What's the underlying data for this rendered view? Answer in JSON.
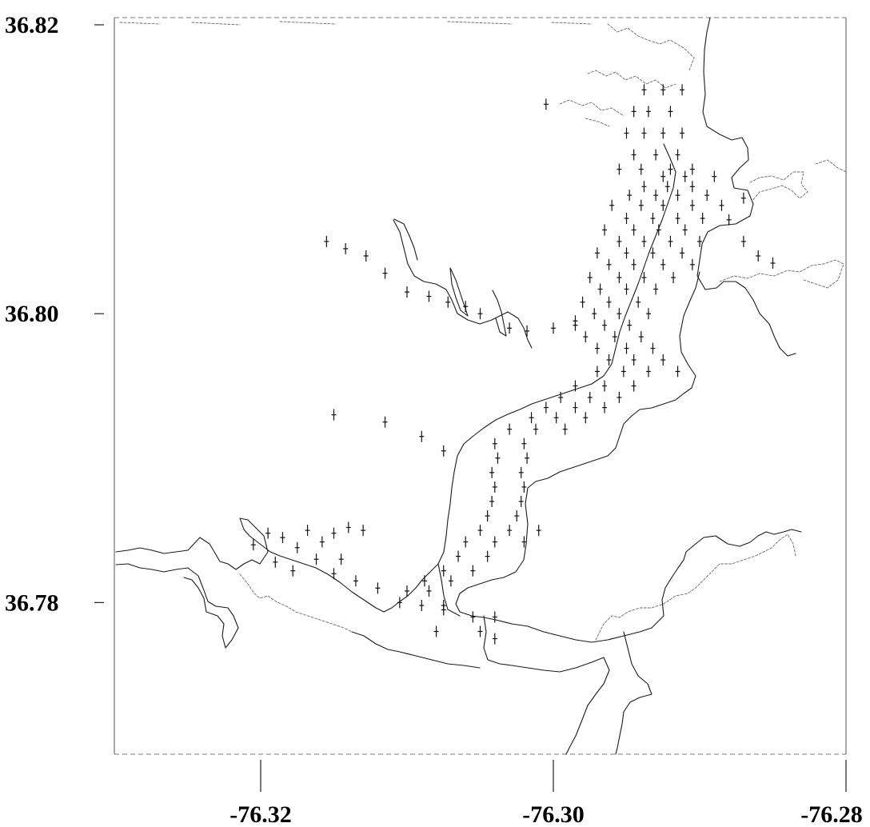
{
  "chart_data": {
    "type": "scatter",
    "title": "",
    "xlabel": "",
    "ylabel": "",
    "xlim": [
      -76.33,
      -76.28
    ],
    "ylim": [
      36.7695,
      36.8205
    ],
    "x_ticks": [
      {
        "value": -76.32,
        "label": "-76.32"
      },
      {
        "value": -76.3,
        "label": "-76.30"
      },
      {
        "value": -76.28,
        "label": "-76.28"
      }
    ],
    "y_ticks": [
      {
        "value": 36.82,
        "label": "36.82"
      },
      {
        "value": 36.8,
        "label": "36.80"
      },
      {
        "value": 36.78,
        "label": "36.78"
      }
    ],
    "grid": false,
    "legend": "none",
    "marker": "+",
    "marker_color": "#111111",
    "coastline_color": "#1a1a1a",
    "series": [
      {
        "points": [
          [
            -76.2938,
            36.8155
          ],
          [
            -76.2925,
            36.8155
          ],
          [
            -76.2912,
            36.8155
          ],
          [
            -76.2945,
            36.814
          ],
          [
            -76.2935,
            36.814
          ],
          [
            -76.292,
            36.814
          ],
          [
            -76.295,
            36.8125
          ],
          [
            -76.2938,
            36.8125
          ],
          [
            -76.2925,
            36.8125
          ],
          [
            -76.2912,
            36.8125
          ],
          [
            -76.2945,
            36.811
          ],
          [
            -76.293,
            36.811
          ],
          [
            -76.2915,
            36.811
          ],
          [
            -76.2955,
            36.81
          ],
          [
            -76.294,
            36.81
          ],
          [
            -76.292,
            36.81
          ],
          [
            -76.2905,
            36.81
          ],
          [
            -76.2925,
            36.8095
          ],
          [
            -76.291,
            36.8095
          ],
          [
            -76.289,
            36.8095
          ],
          [
            -76.2938,
            36.8088
          ],
          [
            -76.2922,
            36.8088
          ],
          [
            -76.2905,
            36.8088
          ],
          [
            -76.2948,
            36.8082
          ],
          [
            -76.293,
            36.8082
          ],
          [
            -76.2915,
            36.8082
          ],
          [
            -76.2895,
            36.8082
          ],
          [
            -76.296,
            36.8075
          ],
          [
            -76.294,
            36.8075
          ],
          [
            -76.2925,
            36.8075
          ],
          [
            -76.2905,
            36.8075
          ],
          [
            -76.2885,
            36.8075
          ],
          [
            -76.295,
            36.8066
          ],
          [
            -76.2932,
            36.8066
          ],
          [
            -76.2915,
            36.8066
          ],
          [
            -76.2898,
            36.8066
          ],
          [
            -76.2965,
            36.8058
          ],
          [
            -76.2945,
            36.8058
          ],
          [
            -76.2928,
            36.8058
          ],
          [
            -76.291,
            36.8058
          ],
          [
            -76.2955,
            36.805
          ],
          [
            -76.2938,
            36.805
          ],
          [
            -76.292,
            36.805
          ],
          [
            -76.29,
            36.805
          ],
          [
            -76.297,
            36.8042
          ],
          [
            -76.295,
            36.8042
          ],
          [
            -76.2932,
            36.8042
          ],
          [
            -76.2912,
            36.8042
          ],
          [
            -76.2962,
            36.8034
          ],
          [
            -76.2945,
            36.8034
          ],
          [
            -76.2925,
            36.8034
          ],
          [
            -76.2905,
            36.8034
          ],
          [
            -76.2975,
            36.8025
          ],
          [
            -76.2955,
            36.8025
          ],
          [
            -76.2938,
            36.8025
          ],
          [
            -76.2918,
            36.8025
          ],
          [
            -76.2968,
            36.8017
          ],
          [
            -76.295,
            36.8017
          ],
          [
            -76.293,
            36.8017
          ],
          [
            -76.298,
            36.8008
          ],
          [
            -76.2962,
            36.8008
          ],
          [
            -76.2942,
            36.8008
          ],
          [
            -76.2972,
            36.8
          ],
          [
            -76.2955,
            36.8
          ],
          [
            -76.2935,
            36.8
          ],
          [
            -76.2985,
            36.7992
          ],
          [
            -76.2965,
            36.7992
          ],
          [
            -76.2948,
            36.7992
          ],
          [
            -76.2978,
            36.7984
          ],
          [
            -76.2958,
            36.7984
          ],
          [
            -76.294,
            36.7984
          ],
          [
            -76.297,
            36.7976
          ],
          [
            -76.295,
            36.7976
          ],
          [
            -76.2932,
            36.7976
          ],
          [
            -76.2962,
            36.7968
          ],
          [
            -76.2945,
            36.7968
          ],
          [
            -76.2925,
            36.7968
          ],
          [
            -76.297,
            36.796
          ],
          [
            -76.2952,
            36.796
          ],
          [
            -76.2935,
            36.796
          ],
          [
            -76.2915,
            36.796
          ],
          [
            -76.2985,
            36.795
          ],
          [
            -76.2965,
            36.795
          ],
          [
            -76.2945,
            36.795
          ],
          [
            -76.2995,
            36.7942
          ],
          [
            -76.2975,
            36.7942
          ],
          [
            -76.2955,
            36.7942
          ],
          [
            -76.3005,
            36.7935
          ],
          [
            -76.2985,
            36.7935
          ],
          [
            -76.2965,
            36.7935
          ],
          [
            -76.3015,
            36.7928
          ],
          [
            -76.2998,
            36.7928
          ],
          [
            -76.2978,
            36.7928
          ],
          [
            -76.303,
            36.792
          ],
          [
            -76.3012,
            36.792
          ],
          [
            -76.2992,
            36.792
          ],
          [
            -76.304,
            36.791
          ],
          [
            -76.302,
            36.791
          ],
          [
            -76.3038,
            36.79
          ],
          [
            -76.3018,
            36.79
          ],
          [
            -76.3042,
            36.789
          ],
          [
            -76.3022,
            36.789
          ],
          [
            -76.304,
            36.788
          ],
          [
            -76.302,
            36.788
          ],
          [
            -76.3042,
            36.787
          ],
          [
            -76.3022,
            36.787
          ],
          [
            -76.3045,
            36.786
          ],
          [
            -76.3025,
            36.786
          ],
          [
            -76.305,
            36.785
          ],
          [
            -76.303,
            36.785
          ],
          [
            -76.301,
            36.785
          ],
          [
            -76.306,
            36.7842
          ],
          [
            -76.304,
            36.7842
          ],
          [
            -76.302,
            36.7842
          ],
          [
            -76.3065,
            36.7832
          ],
          [
            -76.3045,
            36.7832
          ],
          [
            -76.3075,
            36.7822
          ],
          [
            -76.3055,
            36.7822
          ],
          [
            -76.3088,
            36.7815
          ],
          [
            -76.307,
            36.7815
          ],
          [
            -76.31,
            36.7808
          ],
          [
            -76.3085,
            36.7808
          ],
          [
            -76.309,
            36.7798
          ],
          [
            -76.3075,
            36.7798
          ],
          [
            -76.3055,
            36.779
          ],
          [
            -76.304,
            36.779
          ],
          [
            -76.305,
            36.778
          ],
          [
            -76.304,
            36.7775
          ],
          [
            -76.3075,
            36.7795
          ],
          [
            -76.308,
            36.778
          ],
          [
            -76.3105,
            36.78
          ],
          [
            -76.312,
            36.781
          ],
          [
            -76.3135,
            36.7815
          ],
          [
            -76.315,
            36.782
          ],
          [
            -76.3162,
            36.783
          ],
          [
            -76.3175,
            36.7838
          ],
          [
            -76.3145,
            36.783
          ],
          [
            -76.3158,
            36.7842
          ],
          [
            -76.3168,
            36.785
          ],
          [
            -76.3185,
            36.7845
          ],
          [
            -76.3195,
            36.7848
          ],
          [
            -76.3205,
            36.784
          ],
          [
            -76.319,
            36.7828
          ],
          [
            -76.3178,
            36.7822
          ],
          [
            -76.313,
            36.785
          ],
          [
            -76.314,
            36.7852
          ],
          [
            -76.315,
            36.7848
          ],
          [
            -76.305,
            36.8
          ],
          [
            -76.306,
            36.8005
          ],
          [
            -76.3072,
            36.8008
          ],
          [
            -76.3085,
            36.8012
          ],
          [
            -76.31,
            36.8015
          ],
          [
            -76.3115,
            36.8028
          ],
          [
            -76.3128,
            36.804
          ],
          [
            -76.3142,
            36.8045
          ],
          [
            -76.3155,
            36.805
          ],
          [
            -76.303,
            36.799
          ],
          [
            -76.3018,
            36.7988
          ],
          [
            -76.3,
            36.799
          ],
          [
            -76.2985,
            36.7995
          ],
          [
            -76.287,
            36.805
          ],
          [
            -76.286,
            36.804
          ],
          [
            -76.285,
            36.8035
          ],
          [
            -76.288,
            36.8065
          ],
          [
            -76.287,
            36.808
          ],
          [
            -76.315,
            36.793
          ],
          [
            -76.3115,
            36.7925
          ],
          [
            -76.309,
            36.7915
          ],
          [
            -76.3075,
            36.7905
          ],
          [
            -76.3005,
            36.8145
          ]
        ]
      }
    ]
  }
}
